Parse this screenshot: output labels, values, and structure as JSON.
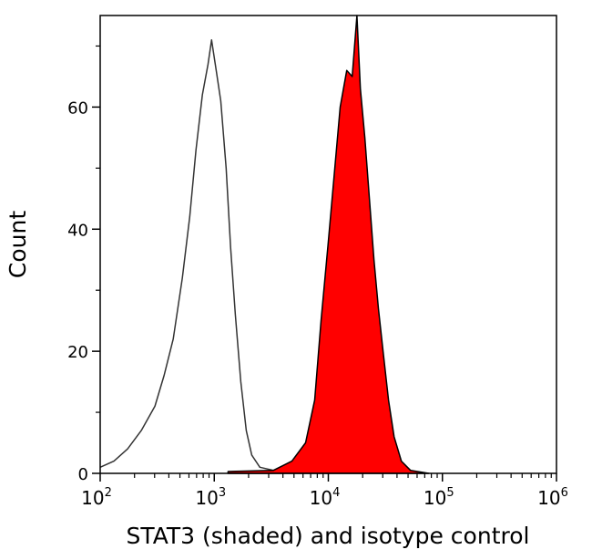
{
  "chart_data": {
    "type": "area",
    "title": "",
    "xlabel": "STAT3 (shaded) and isotype control",
    "ylabel": "Count",
    "xscale": "log",
    "xlim": [
      100,
      1000000
    ],
    "ylim": [
      0,
      75
    ],
    "x_ticks": [
      {
        "value": 100,
        "base": "10",
        "exp": "2"
      },
      {
        "value": 1000,
        "base": "10",
        "exp": "3"
      },
      {
        "value": 10000,
        "base": "10",
        "exp": "4"
      },
      {
        "value": 100000,
        "base": "10",
        "exp": "5"
      },
      {
        "value": 1000000,
        "base": "10",
        "exp": "6"
      }
    ],
    "y_ticks": [
      {
        "value": 0,
        "label": "0"
      },
      {
        "value": 20,
        "label": "20"
      },
      {
        "value": 40,
        "label": "40"
      },
      {
        "value": 60,
        "label": "60"
      }
    ],
    "y_minor_ticks": [
      10,
      30,
      50,
      70
    ],
    "grid": false,
    "series": [
      {
        "style": "outline",
        "color": "#333333",
        "x": [
          100,
          132,
          174,
          229,
          302,
          363,
          437,
          525,
          609,
          692,
          787,
          881,
          947,
          1040,
          1140,
          1270,
          1390,
          1530,
          1710,
          1910,
          2130,
          2510,
          3300,
          10000
        ],
        "y": [
          1,
          2,
          4,
          7,
          11,
          16,
          22,
          32,
          42,
          53,
          62,
          67,
          71,
          66,
          61,
          50,
          37,
          26,
          15,
          7,
          3,
          1,
          0.5,
          0
        ]
      },
      {
        "style": "filled",
        "color": "#ff0000",
        "edge_color": "#000000",
        "x": [
          1320,
          3300,
          4790,
          6310,
          7590,
          8630,
          10000,
          11400,
          12700,
          14500,
          16200,
          17800,
          19100,
          20900,
          22900,
          25100,
          27500,
          30200,
          33700,
          37700,
          43700,
          52500,
          75900
        ],
        "y": [
          0.3,
          0.5,
          2,
          5,
          12,
          25,
          38,
          50,
          60,
          66,
          65,
          75,
          63,
          55,
          45,
          35,
          27,
          20,
          12,
          6,
          2,
          0.5,
          0
        ]
      }
    ]
  }
}
